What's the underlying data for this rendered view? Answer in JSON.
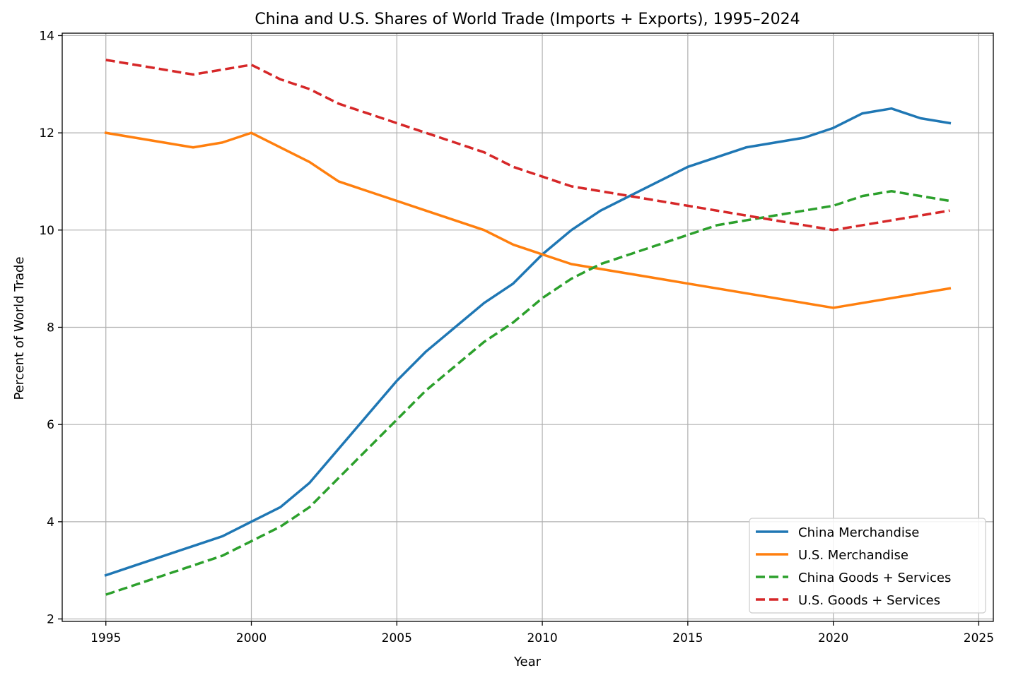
{
  "chart_data": {
    "type": "line",
    "title": "China and U.S. Shares of World Trade (Imports + Exports), 1995–2024",
    "xlabel": "Year",
    "ylabel": "Percent of World Trade",
    "xlim": [
      1993.5,
      2025.5
    ],
    "ylim": [
      1.95,
      14.05
    ],
    "xticks": [
      1995,
      2000,
      2005,
      2010,
      2015,
      2020,
      2025
    ],
    "yticks": [
      2,
      4,
      6,
      8,
      10,
      12,
      14
    ],
    "grid": true,
    "legend_position": "lower-right",
    "x": [
      1995,
      1996,
      1997,
      1998,
      1999,
      2000,
      2001,
      2002,
      2003,
      2004,
      2005,
      2006,
      2007,
      2008,
      2009,
      2010,
      2011,
      2012,
      2013,
      2014,
      2015,
      2016,
      2017,
      2018,
      2019,
      2020,
      2021,
      2022,
      2023,
      2024
    ],
    "series": [
      {
        "name": "China Merchandise",
        "color": "#1f77b4",
        "dash": "solid",
        "values": [
          2.9,
          3.1,
          3.3,
          3.5,
          3.7,
          4.0,
          4.3,
          4.8,
          5.5,
          6.2,
          6.9,
          7.5,
          8.0,
          8.5,
          8.9,
          9.5,
          10.0,
          10.4,
          10.7,
          11.0,
          11.3,
          11.5,
          11.7,
          11.8,
          11.9,
          12.1,
          12.4,
          12.5,
          12.3,
          12.2
        ]
      },
      {
        "name": "U.S. Merchandise",
        "color": "#ff7f0e",
        "dash": "solid",
        "values": [
          12.0,
          11.9,
          11.8,
          11.7,
          11.8,
          12.0,
          11.7,
          11.4,
          11.0,
          10.8,
          10.6,
          10.4,
          10.2,
          10.0,
          9.7,
          9.5,
          9.3,
          9.2,
          9.1,
          9.0,
          8.9,
          8.8,
          8.7,
          8.6,
          8.5,
          8.4,
          8.5,
          8.6,
          8.7,
          8.8
        ]
      },
      {
        "name": "China Goods + Services",
        "color": "#2ca02c",
        "dash": "dashed",
        "values": [
          2.5,
          2.7,
          2.9,
          3.1,
          3.3,
          3.6,
          3.9,
          4.3,
          4.9,
          5.5,
          6.1,
          6.7,
          7.2,
          7.7,
          8.1,
          8.6,
          9.0,
          9.3,
          9.5,
          9.7,
          9.9,
          10.1,
          10.2,
          10.3,
          10.4,
          10.5,
          10.7,
          10.8,
          10.7,
          10.6
        ]
      },
      {
        "name": "U.S. Goods + Services",
        "color": "#d62728",
        "dash": "dashed",
        "values": [
          13.5,
          13.4,
          13.3,
          13.2,
          13.3,
          13.4,
          13.1,
          12.9,
          12.6,
          12.4,
          12.2,
          12.0,
          11.8,
          11.6,
          11.3,
          11.1,
          10.9,
          10.8,
          10.7,
          10.6,
          10.5,
          10.4,
          10.3,
          10.2,
          10.1,
          10.0,
          10.1,
          10.2,
          10.3,
          10.4
        ]
      }
    ]
  }
}
